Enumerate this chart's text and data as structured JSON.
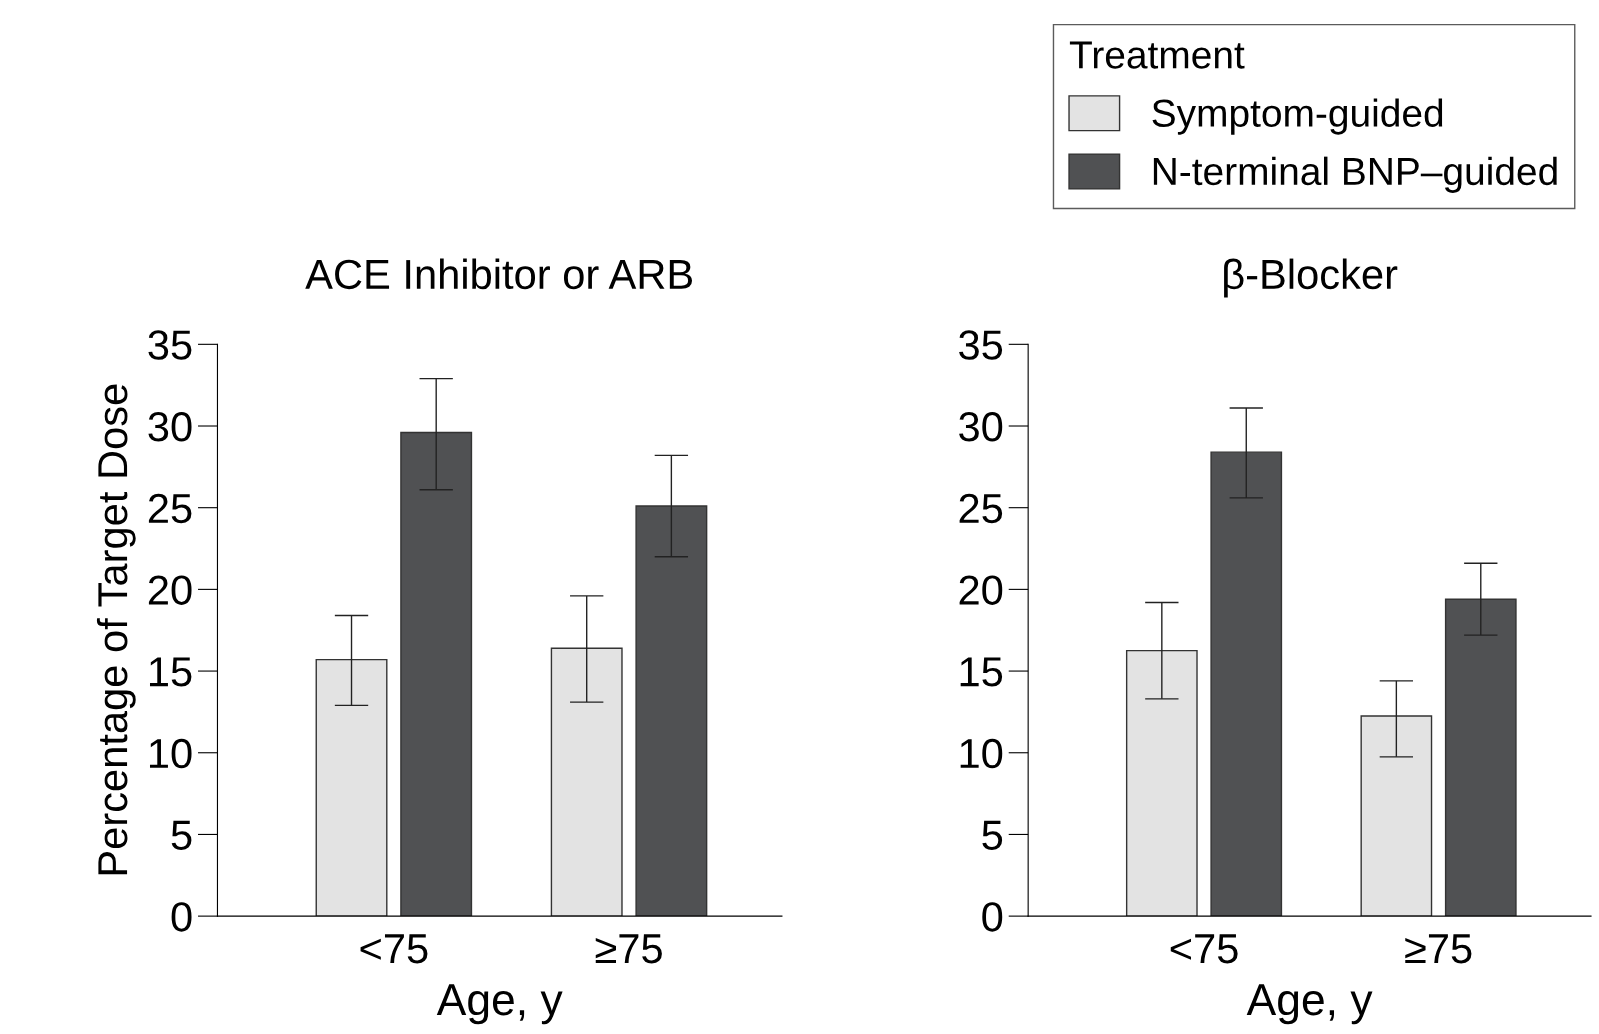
{
  "chart_data": [
    {
      "type": "bar",
      "title": "ACE Inhibitor or ARB",
      "xlabel": "Age, y",
      "ylabel": "Percentage of Target Dose",
      "categories": [
        "<75",
        "≥75"
      ],
      "ylim": [
        0,
        35
      ],
      "yticks": [
        0,
        5,
        10,
        15,
        20,
        25,
        30,
        35
      ],
      "grid": false,
      "series": [
        {
          "color": "#e3e3e3",
          "values": [
            15.7,
            16.4
          ],
          "errors": [
            [
              12.9,
              18.4
            ],
            [
              13.1,
              19.6
            ]
          ]
        },
        {
          "color": "#505153",
          "values": [
            29.6,
            25.1
          ],
          "errors": [
            [
              26.1,
              32.9
            ],
            [
              22.0,
              28.2
            ]
          ]
        }
      ]
    },
    {
      "type": "bar",
      "title": "β-Blocker",
      "xlabel": "Age, y",
      "categories": [
        "<75",
        "≥75"
      ],
      "ylim": [
        0,
        35
      ],
      "yticks": [
        0,
        5,
        10,
        15,
        20,
        25,
        30,
        35
      ],
      "grid": false,
      "legend": "top right",
      "legend_title": "Treatment",
      "series": [
        {
          "name": "Symptom-guided",
          "color": "#e3e3e3",
          "values": [
            16.25,
            12.25
          ],
          "errors": [
            [
              13.3,
              19.2
            ],
            [
              9.75,
              14.4
            ]
          ]
        },
        {
          "name": "N-terminal BNP–guided",
          "color": "#505153",
          "values": [
            28.4,
            19.4
          ],
          "errors": [
            [
              25.6,
              31.1
            ],
            [
              17.2,
              21.6
            ]
          ]
        }
      ]
    }
  ]
}
